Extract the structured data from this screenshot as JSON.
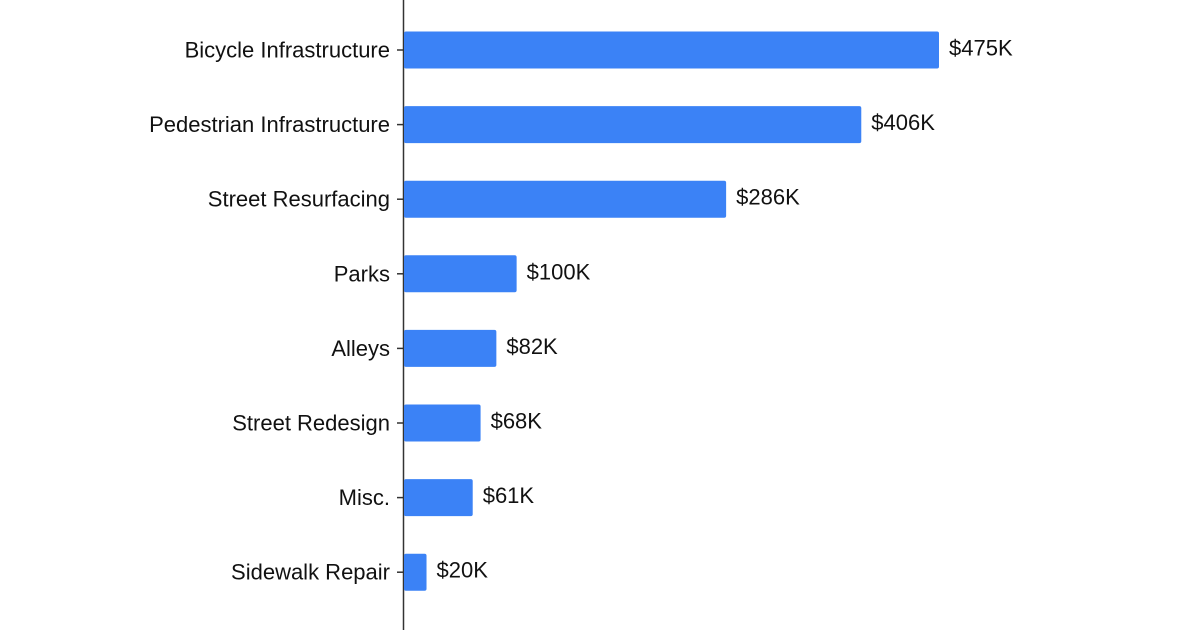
{
  "chart_data": {
    "type": "bar",
    "orientation": "horizontal",
    "categories": [
      "Bicycle Infrastructure",
      "Pedestrian Infrastructure",
      "Street Resurfacing",
      "Parks",
      "Alleys",
      "Street Redesign",
      "Misc.",
      "Sidewalk Repair"
    ],
    "values": [
      475,
      406,
      286,
      100,
      82,
      68,
      61,
      20
    ],
    "value_labels": [
      "$475K",
      "$406K",
      "$286K",
      "$100K",
      "$82K",
      "$68K",
      "$61K",
      "$20K"
    ],
    "unit": "K",
    "title": "",
    "xlabel": "",
    "ylabel": "",
    "xlim": [
      0,
      475
    ],
    "grid": false,
    "legend": "none",
    "colors": {
      "bar": "#3b82f6",
      "axis": "#333333",
      "text": "#111111",
      "background": "#ffffff"
    }
  }
}
